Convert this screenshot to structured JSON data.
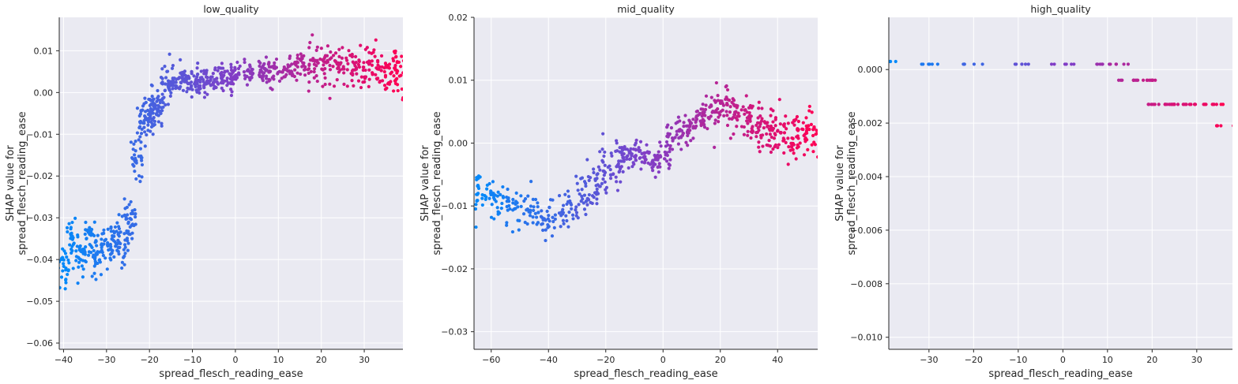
{
  "chart_data": [
    {
      "type": "scatter",
      "title": "low_quality",
      "xlabel": "spread_flesch_reading_ease",
      "ylabel": [
        "SHAP value for",
        "spread_flesch_reading_ease"
      ],
      "xlim": [
        -41,
        39
      ],
      "ylim": [
        -0.0615,
        0.018
      ],
      "xticks": [
        -40,
        -30,
        -20,
        -10,
        0,
        10,
        20,
        30
      ],
      "yticks": [
        -0.06,
        -0.05,
        -0.04,
        -0.03,
        -0.02,
        -0.01,
        0.0,
        0.01
      ],
      "yticklabels": [
        "−0.06",
        "−0.05",
        "−0.04",
        "−0.03",
        "−0.02",
        "−0.01",
        "0.00",
        "0.01"
      ],
      "grid": true,
      "color_gradient": [
        "#008bfb",
        "#7f3fc8",
        "#ff0052"
      ],
      "series": [
        {
          "x": [
            -40,
            -38,
            -36,
            -34,
            -32,
            -30,
            -28,
            -26,
            -24.5,
            -23,
            -21.5,
            -20,
            -19,
            -18,
            -16,
            -14,
            -12,
            -10,
            -8,
            -6,
            -4,
            -2,
            0,
            3,
            6,
            9,
            12,
            15,
            18,
            21,
            24,
            27,
            30,
            33,
            36,
            38
          ],
          "y": [
            -0.042,
            -0.036,
            -0.04,
            -0.035,
            -0.038,
            -0.037,
            -0.034,
            -0.036,
            -0.03,
            -0.016,
            -0.008,
            -0.005,
            -0.004,
            -0.003,
            0.003,
            0.003,
            0.003,
            0.0025,
            0.0025,
            0.003,
            0.003,
            0.003,
            0.004,
            0.0045,
            0.005,
            0.005,
            0.0055,
            0.0065,
            0.007,
            0.0065,
            0.006,
            0.006,
            0.0065,
            0.006,
            0.0055,
            0.005
          ]
        }
      ]
    },
    {
      "type": "scatter",
      "title": "mid_quality",
      "xlabel": "spread_flesch_reading_ease",
      "ylabel": [
        "SHAP value for",
        "spread_flesch_reading_ease"
      ],
      "xlim": [
        -66,
        54
      ],
      "ylim": [
        -0.0328,
        0.02
      ],
      "xticks": [
        -60,
        -40,
        -20,
        0,
        20,
        40
      ],
      "yticks": [
        -0.03,
        -0.02,
        -0.01,
        0.0,
        0.01,
        0.02
      ],
      "yticklabels": [
        "−0.03",
        "−0.02",
        "−0.01",
        "0.00",
        "0.01",
        "0.02"
      ],
      "grid": true,
      "color_gradient": [
        "#008bfb",
        "#7f3fc8",
        "#ff0052"
      ],
      "series": [
        {
          "x": [
            -64,
            -58,
            -52,
            -46,
            -40,
            -34,
            -28,
            -24,
            -20,
            -16,
            -12,
            -8,
            -4,
            0,
            4,
            8,
            12,
            16,
            20,
            24,
            28,
            32,
            36,
            40,
            44,
            48,
            52
          ],
          "y": [
            -0.008,
            -0.009,
            -0.01,
            -0.011,
            -0.012,
            -0.011,
            -0.009,
            -0.007,
            -0.004,
            -0.003,
            -0.002,
            -0.002,
            -0.003,
            -0.002,
            0.001,
            0.002,
            0.004,
            0.005,
            0.006,
            0.005,
            0.004,
            0.003,
            0.002,
            0.002,
            0.001,
            0.001,
            0.002
          ]
        }
      ]
    },
    {
      "type": "scatter",
      "title": "high_quality",
      "xlabel": "spread_flesch_reading_ease",
      "ylabel": [
        "SHAP value for",
        "spread_flesch_reading_ease"
      ],
      "xlim": [
        -39,
        38
      ],
      "ylim": [
        -0.01045,
        0.00195
      ],
      "xticks": [
        -30,
        -20,
        -10,
        0,
        10,
        20,
        30
      ],
      "yticks": [
        -0.01,
        -0.008,
        -0.006,
        -0.004,
        -0.002,
        0.0
      ],
      "yticklabels": [
        "−0.010",
        "−0.008",
        "−0.006",
        "−0.004",
        "−0.002",
        "0.000"
      ],
      "grid": true,
      "color_gradient": [
        "#008bfb",
        "#7f3fc8",
        "#ff0052"
      ],
      "series": [
        {
          "x": [
            -38,
            -30,
            -20,
            -10,
            0,
            8,
            13,
            15,
            18,
            20,
            21,
            23,
            25,
            27,
            30,
            33,
            36,
            38
          ],
          "y": [
            0.0003,
            0.0002,
            0.0002,
            0.0002,
            0.0002,
            0.0002,
            0.0002,
            -0.0004,
            -0.0004,
            -0.0004,
            -0.0013,
            -0.0013,
            -0.0013,
            -0.0013,
            -0.0013,
            -0.0013,
            -0.0021,
            -0.0013
          ]
        }
      ]
    }
  ]
}
